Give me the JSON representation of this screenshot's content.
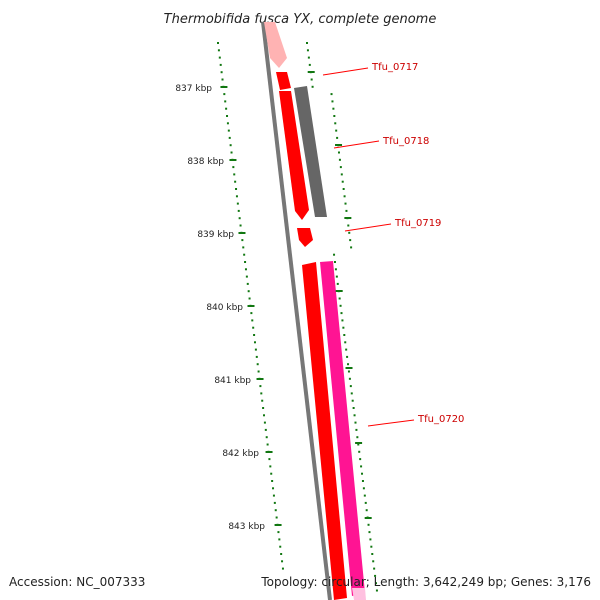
{
  "title": "Thermobifida fusca YX, complete genome",
  "footer": {
    "accession": "Accession: NC_007333",
    "summary": "Topology: circular; Length: 3,642,249 bp; Genes: 3,176"
  },
  "ruler": {
    "labels": [
      "837 kbp",
      "838 kbp",
      "839 kbp",
      "840 kbp",
      "841 kbp",
      "842 kbp",
      "843 kbp"
    ]
  },
  "genes": [
    {
      "label": "Tfu_0717",
      "color": "#ff0000"
    },
    {
      "label": "Tfu_0718",
      "color": "#666666"
    },
    {
      "label": "Tfu_0719",
      "color": "#ff0000"
    },
    {
      "label": "Tfu_0720",
      "color": "#ff1493"
    }
  ],
  "colors": {
    "backbone": "#777777",
    "tick": "#117711",
    "forward_strand": "#ff0000",
    "reverse_strand": "#ff1493",
    "other": "#666666",
    "label": "#cc0000"
  }
}
